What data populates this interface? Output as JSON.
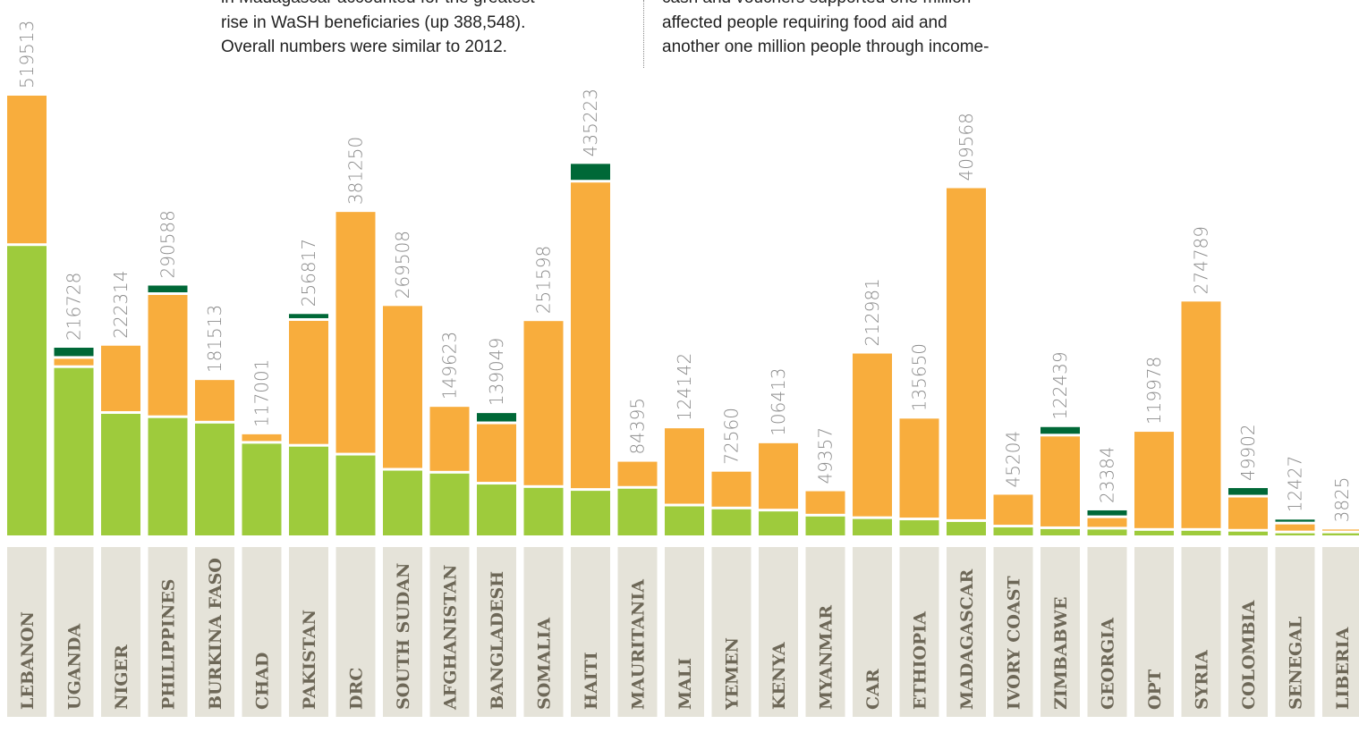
{
  "text_blocks": {
    "left": [
      "in Madagascar accounted for the greatest",
      "rise in WaSH beneficiaries (up 388,548).",
      "Overall numbers were similar to 2012."
    ],
    "right": [
      "cash and vouchers supported one million",
      "affected people requiring food aid and",
      "another one million people through income-"
    ]
  },
  "colors": {
    "green": "#9ecb3c",
    "orange": "#f8ad3d",
    "dark_green": "#006837",
    "label_bg": "#e5e3d9",
    "value_text": "#8c8c8c",
    "category_text": "#6d6757"
  },
  "chart_data": {
    "type": "bar",
    "stacked": true,
    "ylim": [
      0,
      560000
    ],
    "categories": [
      "LEBANON",
      "UGANDA",
      "NIGER",
      "PHILIPPINES",
      "BURKINA FASO",
      "CHAD",
      "PAKISTAN",
      "DRC",
      "SOUTH SUDAN",
      "AFGHANISTAN",
      "BANGLADESH",
      "SOMALIA",
      "HAITI",
      "MAURITANIA",
      "MALI",
      "YEMEN",
      "KENYA",
      "MYANMAR",
      "CAR",
      "ETHIOPIA",
      "MADAGASCAR",
      "IVORY COAST",
      "ZIMBABWE",
      "GEORGIA",
      "OPT",
      "SYRIA",
      "COLOMBIA",
      "SENEGAL",
      "LIBERIA"
    ],
    "totals": [
      519513,
      216728,
      222314,
      290588,
      181513,
      117001,
      256817,
      381250,
      269508,
      149623,
      139049,
      251598,
      435223,
      84395,
      124142,
      72560,
      106413,
      49357,
      212981,
      135650,
      409568,
      45204,
      122439,
      23384,
      119978,
      274789,
      49902,
      12427,
      3825
    ],
    "series": [
      {
        "color": "green",
        "values": [
          344000,
          199000,
          144500,
          139500,
          133000,
          109000,
          105500,
          95000,
          77000,
          73500,
          60500,
          56500,
          53000,
          55500,
          34500,
          31000,
          28500,
          22500,
          19500,
          18000,
          16000,
          9500,
          7500,
          7000,
          5500,
          5500,
          4500,
          2500,
          2500
        ]
      },
      {
        "color": "orange",
        "values": [
          175513,
          7728,
          77814,
          143088,
          48513,
          8001,
          146317,
          286250,
          192508,
          76123,
          68549,
          195098,
          363223,
          28895,
          89642,
          41560,
          77913,
          26857,
          193481,
          117650,
          393568,
          35704,
          106939,
          10384,
          114478,
          269289,
          37402,
          7427,
          1325
        ]
      },
      {
        "color": "dark_green",
        "values": [
          0,
          10000,
          0,
          8000,
          0,
          0,
          5000,
          0,
          0,
          0,
          10000,
          0,
          19000,
          0,
          0,
          0,
          0,
          0,
          0,
          0,
          0,
          0,
          8000,
          6000,
          0,
          0,
          8000,
          2500,
          0
        ]
      }
    ]
  }
}
